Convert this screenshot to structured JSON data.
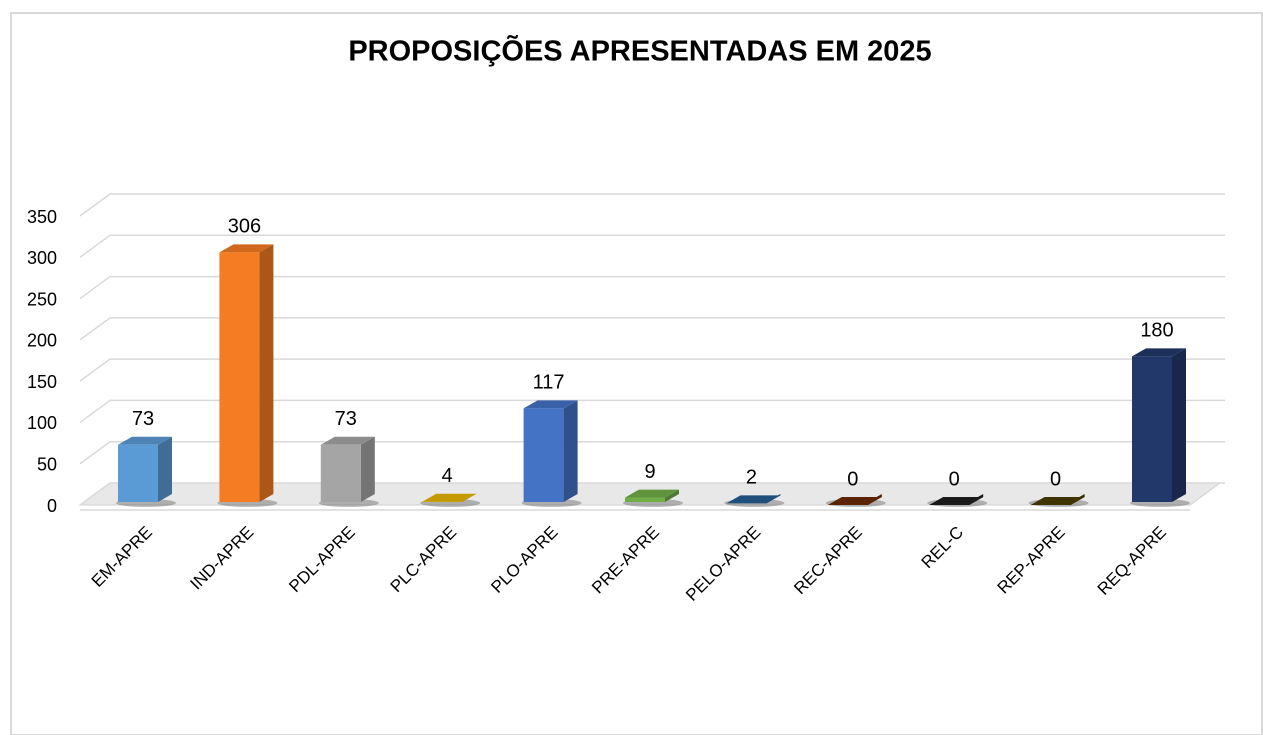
{
  "chart_data": {
    "type": "bar3d",
    "title": "PROPOSIÇÕES APRESENTADAS EM 2025",
    "categories": [
      "EM-APRE",
      "IND-APRE",
      "PDL-APRE",
      "PLC-APRE",
      "PLO-APRE",
      "PRE-APRE",
      "PELO-APRE",
      "REC-APRE",
      "REL-C",
      "REP-APRE",
      "REQ-APRE"
    ],
    "values": [
      73,
      306,
      73,
      4,
      117,
      9,
      2,
      0,
      0,
      0,
      180
    ],
    "colors": [
      "#5b9bd5",
      "#f57c22",
      "#a5a5a5",
      "#e8b400",
      "#4472c4",
      "#70ad47",
      "#255e91",
      "#6b2a00",
      "#1e1e1e",
      "#4a3c00",
      "#22386b"
    ],
    "ylim": [
      0,
      350
    ],
    "yticks": [
      0,
      50,
      100,
      150,
      200,
      250,
      300,
      350
    ],
    "grid": true
  }
}
